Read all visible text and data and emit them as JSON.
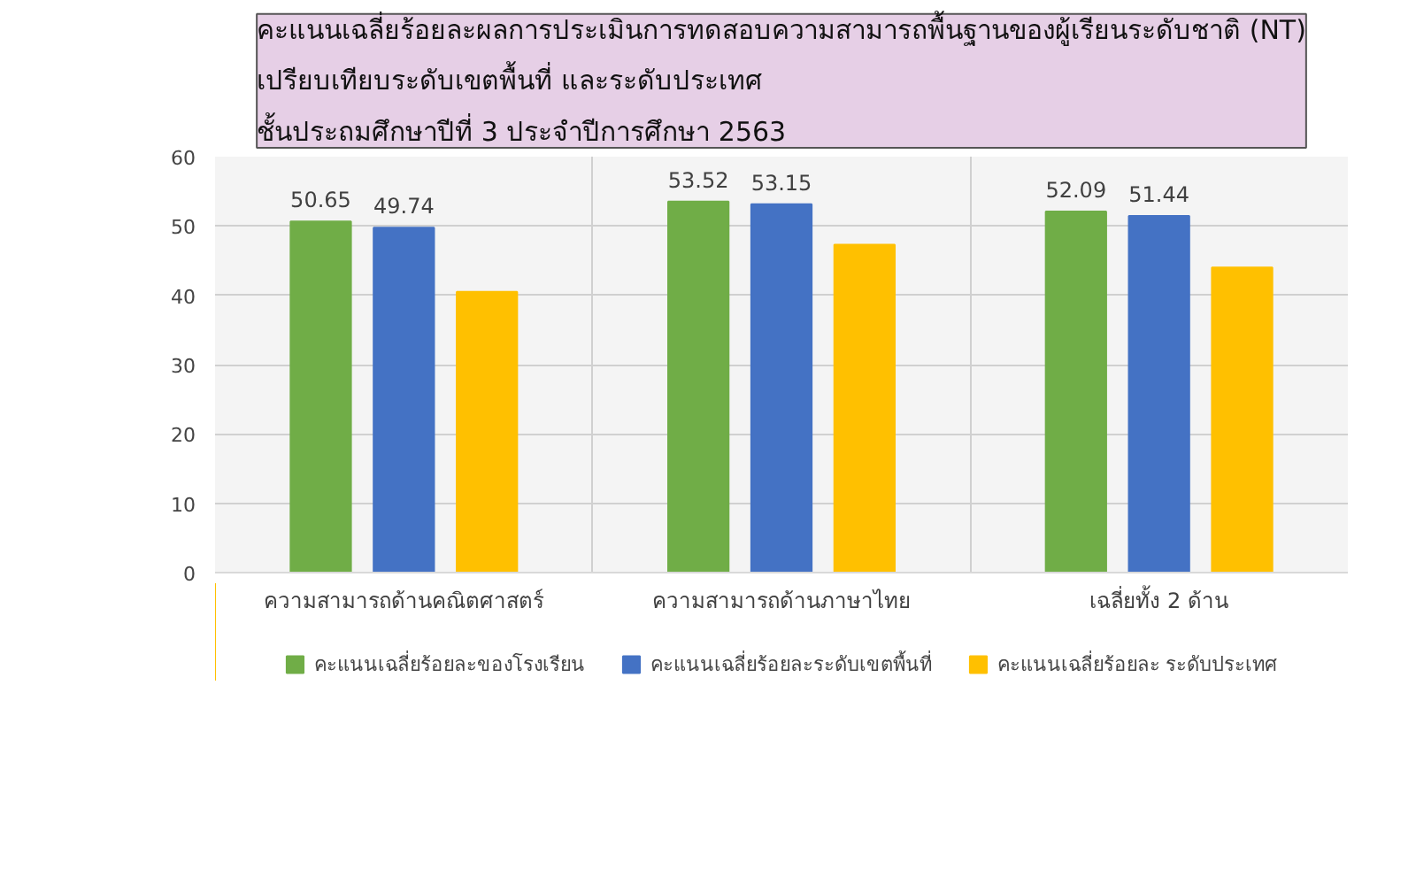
{
  "chart_data": {
    "type": "bar",
    "title": "คะแนนเฉลี่ยร้อยละผลการประเมินการทดสอบความสามารถพื้นฐานของผู้เรียนระดับชาติ (NT)\nเปรียบเทียบระดับเขตพื้นที่ และระดับประเทศ\nชั้นประถมศึกษาปีที่  3  ประจำปีการศึกษา  2563",
    "categories": [
      "ความสามารถด้านคณิตศาสตร์",
      "ความสามารถด้านภาษาไทย",
      "เฉลี่ยทั้ง 2 ด้าน"
    ],
    "series": [
      {
        "name": "คะแนนเฉลี่ยร้อยละของโรงเรียน",
        "color": "#70ad47",
        "values": [
          50.65,
          53.52,
          52.09
        ],
        "value_labels": [
          "50.65",
          "53.52",
          "52.09"
        ]
      },
      {
        "name": "คะแนนเฉลี่ยร้อยละระดับเขตพื้นที่",
        "color": "#4472c4",
        "values": [
          49.74,
          53.15,
          51.44
        ],
        "value_labels": [
          "49.74",
          "53.15",
          "51.44"
        ]
      },
      {
        "name": "คะแนนเฉลี่ยร้อยละ ระดับประเทศ",
        "color": "#ffc000",
        "values": [
          40.5,
          47.3,
          44.0
        ],
        "value_labels": [
          null,
          null,
          null
        ]
      }
    ],
    "ylim": [
      0,
      60
    ],
    "yticks": [
      0,
      10,
      20,
      30,
      40,
      50,
      60
    ],
    "grid": true,
    "legend": "bottom"
  }
}
